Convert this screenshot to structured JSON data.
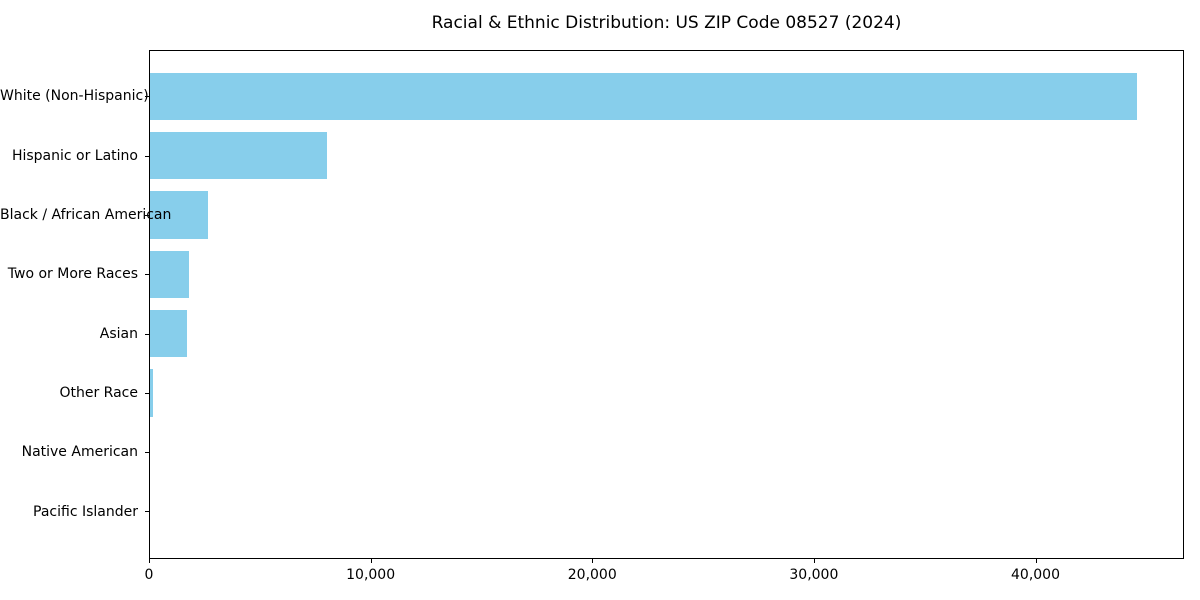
{
  "chart_data": {
    "type": "bar",
    "orientation": "horizontal",
    "title": "Racial & Ethnic Distribution: US ZIP Code 08527 (2024)",
    "categories": [
      "White (Non-Hispanic)",
      "Hispanic or Latino",
      "Black / African American",
      "Two or More Races",
      "Asian",
      "Other Race",
      "Native American",
      "Pacific Islander"
    ],
    "values": [
      44560,
      8040,
      2660,
      1810,
      1720,
      160,
      30,
      10
    ],
    "xlabel": "",
    "ylabel": "",
    "xlim": [
      0,
      46700
    ],
    "x_ticks": [
      0,
      10000,
      20000,
      30000,
      40000
    ],
    "x_tick_labels": [
      "0",
      "10,000",
      "20,000",
      "30,000",
      "40,000"
    ],
    "bar_color": "#87CEEB",
    "text_color": "#000000",
    "background_color": "#FFFFFF",
    "grid": false,
    "legend": null
  }
}
